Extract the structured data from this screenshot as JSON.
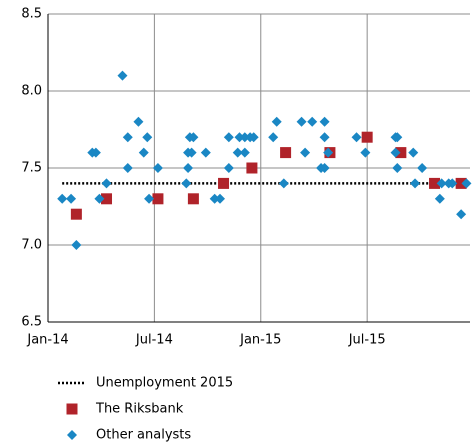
{
  "chart_data": {
    "type": "scatter",
    "xlim": [
      0,
      23.8
    ],
    "xticks": [
      {
        "value": 0,
        "label": "Jan-14"
      },
      {
        "value": 6,
        "label": "Jul-14"
      },
      {
        "value": 12,
        "label": "Jan-15"
      },
      {
        "value": 18,
        "label": "Jul-15"
      }
    ],
    "ylim": [
      6.5,
      8.5
    ],
    "yticks": [
      {
        "value": 6.5,
        "label": "6.5"
      },
      {
        "value": 7,
        "label": "7.0"
      },
      7.5,
      {
        "value": 8,
        "label": "8.0"
      },
      {
        "value": 8.5,
        "label": "8.5"
      }
    ],
    "grid": true,
    "series": [
      {
        "name": "Unemployment 2015",
        "marker": "dotted-line",
        "color": "#000000",
        "x": [
          0.8,
          23.7
        ],
        "values": [
          7.4,
          7.4
        ]
      },
      {
        "name": "The Riksbank",
        "marker": "square",
        "color": "#b0232a",
        "x": [
          1.6,
          3.3,
          6.2,
          8.2,
          9.9,
          11.5,
          13.4,
          15.9,
          18.0,
          19.9,
          21.8,
          23.3
        ],
        "values": [
          7.2,
          7.3,
          7.3,
          7.3,
          7.4,
          7.5,
          7.6,
          7.6,
          7.7,
          7.6,
          7.4,
          7.4
        ]
      },
      {
        "name": "Other analysts",
        "marker": "diamond",
        "color": "#1a87c4",
        "x": [
          0.8,
          1.3,
          1.6,
          2.5,
          2.7,
          2.9,
          3.3,
          4.2,
          4.5,
          4.5,
          5.1,
          5.4,
          5.6,
          5.7,
          6.2,
          7.8,
          7.9,
          7.9,
          8.0,
          8.1,
          8.2,
          8.9,
          9.4,
          9.7,
          10.2,
          10.2,
          10.7,
          10.8,
          11.1,
          11.1,
          11.4,
          11.6,
          12.7,
          12.9,
          13.3,
          14.3,
          14.5,
          14.9,
          15.4,
          15.6,
          15.6,
          15.6,
          15.8,
          17.4,
          17.9,
          19.6,
          19.6,
          19.7,
          19.7,
          20.6,
          20.7,
          21.1,
          22.1,
          22.2,
          22.6,
          22.8,
          23.3,
          23.6
        ],
        "values": [
          7.3,
          7.3,
          7.0,
          7.6,
          7.6,
          7.3,
          7.4,
          8.1,
          7.7,
          7.5,
          7.8,
          7.6,
          7.7,
          7.3,
          7.5,
          7.4,
          7.5,
          7.6,
          7.7,
          7.6,
          7.7,
          7.6,
          7.3,
          7.3,
          7.5,
          7.7,
          7.6,
          7.7,
          7.6,
          7.7,
          7.7,
          7.7,
          7.7,
          7.8,
          7.4,
          7.8,
          7.6,
          7.8,
          7.5,
          7.8,
          7.7,
          7.5,
          7.6,
          7.7,
          7.6,
          7.6,
          7.7,
          7.7,
          7.5,
          7.6,
          7.4,
          7.5,
          7.3,
          7.4,
          7.4,
          7.4,
          7.2,
          7.4
        ]
      }
    ]
  }
}
